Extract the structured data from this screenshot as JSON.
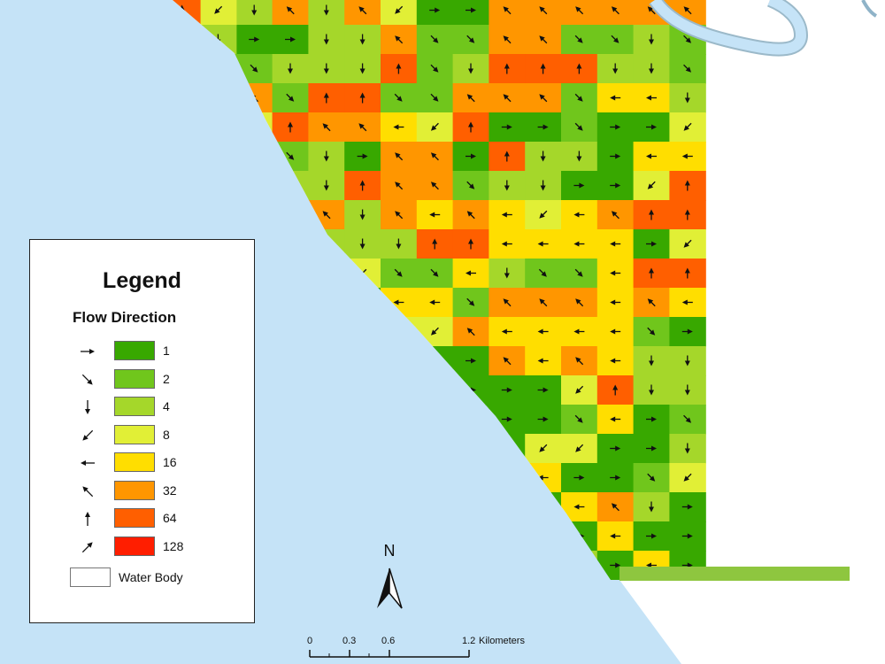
{
  "legend": {
    "title": "Legend",
    "subtitle": "Flow Direction",
    "classes": [
      {
        "label": "1",
        "dir": "E",
        "color": "#38a800"
      },
      {
        "label": "2",
        "dir": "SE",
        "color": "#70c61c"
      },
      {
        "label": "4",
        "dir": "S",
        "color": "#a5d72a"
      },
      {
        "label": "8",
        "dir": "SW",
        "color": "#e1ef36"
      },
      {
        "label": "16",
        "dir": "W",
        "color": "#ffde00"
      },
      {
        "label": "32",
        "dir": "NW",
        "color": "#ff9600"
      },
      {
        "label": "64",
        "dir": "N",
        "color": "#ff5f00"
      },
      {
        "label": "128",
        "dir": "NE",
        "color": "#ff1e00"
      }
    ],
    "water_label": "Water Body"
  },
  "north_arrow": {
    "label": "N"
  },
  "scale_bar": {
    "ticks": [
      "0",
      "0.3",
      "0.6",
      "1.2"
    ],
    "unit": "Kilometers"
  },
  "colors": {
    "sea": "#c5e3f7",
    "river": "#c5e3f7",
    "background": "#ffffff"
  },
  "grid": {
    "rows": [
      "3636411666666",
      "1133622662232",
      "2333723777332",
      "6277226662553",
      "4766547112114",
      "1231661733155",
      "3337662331147",
      "1163656545677",
      "1133377555514",
      "1344225322577",
      "1221552666565",
      "1112446555521",
      "1111111656533",
      "1145111114733",
      "1321411112512",
      "1111111144113",
      "2225612151124",
      "1125112115631",
      "1133322111511",
      "3311115113151"
    ]
  }
}
